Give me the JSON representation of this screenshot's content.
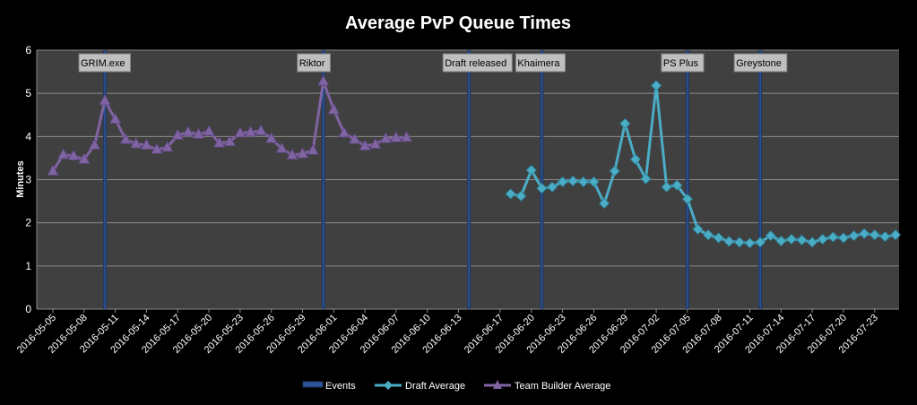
{
  "chart_data": {
    "type": "line",
    "title": "Average PvP Queue Times",
    "xlabel": "",
    "ylabel": "Minutes",
    "ylim": [
      0,
      6
    ],
    "yticks": [
      0,
      1,
      2,
      3,
      4,
      5,
      6
    ],
    "grid": true,
    "legend_position": "bottom",
    "x_start": "2016-05-05",
    "x_end": "2016-07-25",
    "x_tick_labels": [
      "2016-05-05",
      "2016-05-08",
      "2016-05-11",
      "2016-05-14",
      "2016-05-17",
      "2016-05-20",
      "2016-05-23",
      "2016-05-26",
      "2016-05-29",
      "2016-06-01",
      "2016-06-04",
      "2016-06-07",
      "2016-06-10",
      "2016-06-13",
      "2016-06-17",
      "2016-06-20",
      "2016-06-23",
      "2016-06-26",
      "2016-06-29",
      "2016-07-02",
      "2016-07-05",
      "2016-07-08",
      "2016-07-11",
      "2016-07-14",
      "2016-07-17",
      "2016-07-20",
      "2016-07-23"
    ],
    "events": {
      "name": "Events",
      "color": "#1f3864",
      "items": [
        {
          "date": "2016-05-10",
          "label": "GRIM.exe"
        },
        {
          "date": "2016-05-31",
          "label": "Riktor"
        },
        {
          "date": "2016-06-14",
          "label": "Draft released"
        },
        {
          "date": "2016-06-21",
          "label": "Khaimera"
        },
        {
          "date": "2016-07-05",
          "label": "PS Plus"
        },
        {
          "date": "2016-07-12",
          "label": "Greystone"
        }
      ]
    },
    "series": [
      {
        "name": "Draft Average",
        "color": "#4bacc6",
        "marker": "diamond",
        "points": [
          [
            "2016-06-18",
            2.67
          ],
          [
            "2016-06-19",
            2.62
          ],
          [
            "2016-06-20",
            3.22
          ],
          [
            "2016-06-21",
            2.8
          ],
          [
            "2016-06-22",
            2.83
          ],
          [
            "2016-06-23",
            2.95
          ],
          [
            "2016-06-24",
            2.97
          ],
          [
            "2016-06-25",
            2.95
          ],
          [
            "2016-06-26",
            2.95
          ],
          [
            "2016-06-27",
            2.45
          ],
          [
            "2016-06-28",
            3.2
          ],
          [
            "2016-06-29",
            4.3
          ],
          [
            "2016-06-30",
            3.47
          ],
          [
            "2016-07-01",
            3.02
          ],
          [
            "2016-07-02",
            5.18
          ],
          [
            "2016-07-03",
            2.83
          ],
          [
            "2016-07-04",
            2.87
          ],
          [
            "2016-07-05",
            2.55
          ],
          [
            "2016-07-06",
            1.85
          ],
          [
            "2016-07-07",
            1.72
          ],
          [
            "2016-07-08",
            1.65
          ],
          [
            "2016-07-09",
            1.57
          ],
          [
            "2016-07-10",
            1.55
          ],
          [
            "2016-07-11",
            1.53
          ],
          [
            "2016-07-12",
            1.55
          ],
          [
            "2016-07-13",
            1.7
          ],
          [
            "2016-07-14",
            1.58
          ],
          [
            "2016-07-15",
            1.62
          ],
          [
            "2016-07-16",
            1.6
          ],
          [
            "2016-07-17",
            1.55
          ],
          [
            "2016-07-18",
            1.62
          ],
          [
            "2016-07-19",
            1.67
          ],
          [
            "2016-07-20",
            1.65
          ],
          [
            "2016-07-21",
            1.7
          ],
          [
            "2016-07-22",
            1.75
          ],
          [
            "2016-07-23",
            1.72
          ],
          [
            "2016-07-24",
            1.68
          ],
          [
            "2016-07-25",
            1.72
          ]
        ]
      },
      {
        "name": "Team Builder Average",
        "color": "#8064a2",
        "marker": "triangle",
        "points": [
          [
            "2016-05-05",
            3.2
          ],
          [
            "2016-05-06",
            3.58
          ],
          [
            "2016-05-07",
            3.55
          ],
          [
            "2016-05-08",
            3.47
          ],
          [
            "2016-05-09",
            3.8
          ],
          [
            "2016-05-10",
            4.83
          ],
          [
            "2016-05-11",
            4.4
          ],
          [
            "2016-05-12",
            3.93
          ],
          [
            "2016-05-13",
            3.83
          ],
          [
            "2016-05-14",
            3.8
          ],
          [
            "2016-05-15",
            3.7
          ],
          [
            "2016-05-16",
            3.75
          ],
          [
            "2016-05-17",
            4.03
          ],
          [
            "2016-05-18",
            4.1
          ],
          [
            "2016-05-19",
            4.05
          ],
          [
            "2016-05-20",
            4.12
          ],
          [
            "2016-05-21",
            3.85
          ],
          [
            "2016-05-22",
            3.88
          ],
          [
            "2016-05-23",
            4.08
          ],
          [
            "2016-05-24",
            4.1
          ],
          [
            "2016-05-25",
            4.13
          ],
          [
            "2016-05-26",
            3.95
          ],
          [
            "2016-05-27",
            3.72
          ],
          [
            "2016-05-28",
            3.57
          ],
          [
            "2016-05-29",
            3.6
          ],
          [
            "2016-05-30",
            3.68
          ],
          [
            "2016-05-31",
            5.28
          ],
          [
            "2016-06-01",
            4.62
          ],
          [
            "2016-06-02",
            4.08
          ],
          [
            "2016-06-03",
            3.93
          ],
          [
            "2016-06-04",
            3.78
          ],
          [
            "2016-06-05",
            3.82
          ],
          [
            "2016-06-06",
            3.95
          ],
          [
            "2016-06-07",
            3.97
          ],
          [
            "2016-06-08",
            3.98
          ]
        ]
      }
    ]
  }
}
